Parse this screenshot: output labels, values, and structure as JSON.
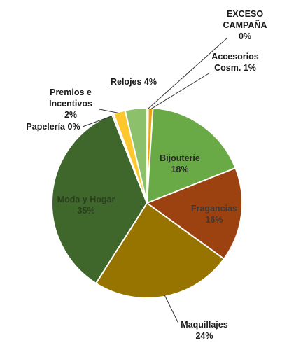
{
  "chart_data": {
    "type": "pie",
    "title": "",
    "legend": "none",
    "labels_format": "category and percent",
    "slices": [
      {
        "name": "EXCESO CAMPAÑA",
        "pct_label": "0%",
        "value": 0.2,
        "color": "#F5A623"
      },
      {
        "name": "Accesorios Cosm.",
        "pct_label": "1%",
        "value": 0.8,
        "color": "#F0A30A"
      },
      {
        "name": "Bijouterie",
        "pct_label": "18%",
        "value": 18,
        "color": "#6AAA46"
      },
      {
        "name": "Fragancias",
        "pct_label": "16%",
        "value": 16,
        "color": "#9C4210"
      },
      {
        "name": "Maquillajes",
        "pct_label": "24%",
        "value": 24,
        "color": "#977400"
      },
      {
        "name": "Moda y Hogar",
        "pct_label": "35%",
        "value": 35,
        "color": "#3F662B"
      },
      {
        "name": "Papelería",
        "pct_label": "0%",
        "value": 0.3,
        "color": "#B1D27A"
      },
      {
        "name": "Premios e Incentivos",
        "pct_label": "2%",
        "value": 2.0,
        "color": "#FFC72E"
      },
      {
        "name": "Relojes",
        "pct_label": "4%",
        "value": 3.7,
        "color": "#8CC06A"
      }
    ]
  }
}
